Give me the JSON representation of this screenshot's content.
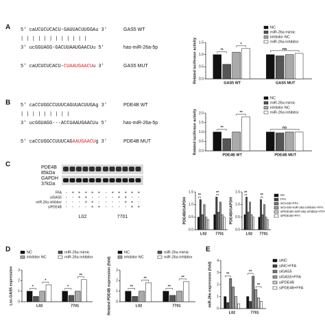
{
  "panel_labels": [
    "A",
    "B",
    "C",
    "D",
    "E"
  ],
  "sequences": [
    [
      {
        "parts": [
          {
            "text": "5' caUCUCUCACU-GAUUACUUGGAu 3'"
          }
        ],
        "label": "GAS5 WT"
      },
      {
        "parts": [
          {
            "text": "    | | | | |  | | | | | | |"
          }
        ]
      },
      {
        "parts": [
          {
            "text": "3' ucGGUAGG-GACUUAAUGAACUu 5'"
          }
        ],
        "label": "has-miR-26a-5p"
      },
      {
        "parts": [
          {
            "text": "5' caUCUCUCACU-"
          },
          {
            "text": "CUAAUGAACU",
            "color": "#e02020"
          },
          {
            "text": "u 3'"
          }
        ],
        "label": "GAS5 MUT"
      }
    ],
    [
      {
        "parts": [
          {
            "text": "5' caCCUGGCCUUUCAGUUACUUGAg 3'"
          }
        ],
        "label": "PDE4B WT"
      },
      {
        "parts": [
          {
            "text": "      | |        | | | | | | |"
          }
        ]
      },
      {
        "parts": [
          {
            "text": "3' ucGGUAGG---ACCUAAUGAACUu 5'"
          }
        ],
        "label": "has-miR-26a-5p"
      },
      {
        "parts": [
          {
            "text": "5' caCCUGGCCUUUCAG"
          },
          {
            "text": "AAUGAACU",
            "color": "#e02020"
          },
          {
            "text": "g 3'"
          }
        ],
        "label": "PDE4B MUT"
      }
    ]
  ],
  "blot": {
    "rows": [
      {
        "name": "PDE4B",
        "size": "85kDa"
      },
      {
        "name": "GAPDH",
        "size": "37kDa"
      }
    ],
    "conditions": [
      {
        "label": "FFA",
        "signs": [
          "-",
          "+",
          "+",
          "+",
          "+",
          "+",
          "-",
          "+",
          "+",
          "+",
          "+",
          "+"
        ]
      },
      {
        "label": "siGAS5",
        "signs": [
          "-",
          "-",
          "+",
          "+",
          "-",
          "-",
          "-",
          "-",
          "+",
          "+",
          "-",
          "-"
        ]
      },
      {
        "label": "miR-26a inhibitor",
        "signs": [
          "-",
          "-",
          "-",
          "+",
          "+",
          "-",
          "-",
          "-",
          "-",
          "+",
          "+",
          "-"
        ]
      },
      {
        "label": "siPDE4B",
        "signs": [
          "-",
          "-",
          "-",
          "-",
          "+",
          "+",
          "-",
          "-",
          "-",
          "-",
          "+",
          "+"
        ]
      }
    ],
    "cells": [
      "L02",
      "7701"
    ]
  },
  "chart_data": [
    {
      "type": "bar",
      "ylabel": "Related luciferase activity",
      "categories": [
        "GAS5 WT",
        "GAS5 MUT"
      ],
      "series": [
        {
          "name": "NC",
          "color": "#111111",
          "values": [
            1.0,
            1.0
          ]
        },
        {
          "name": "miR-26a mimic",
          "color": "#555555",
          "values": [
            0.6,
            0.95
          ]
        },
        {
          "name": "inhibitor NC",
          "color": "#aaaaaa",
          "values": [
            1.1,
            1.0
          ]
        },
        {
          "name": "miR-26a inhibitor",
          "color": "#ffffff",
          "values": [
            1.25,
            1.05
          ]
        }
      ],
      "ylim": [
        0,
        1.5
      ],
      "yticks": [
        {
          "value": 0,
          "label": "0.0"
        },
        {
          "value": 0.5,
          "label": "0.5"
        },
        {
          "value": 1,
          "label": "1.0"
        },
        {
          "value": 1.5,
          "label": "1.5"
        }
      ],
      "legend": "top-right",
      "significance": [
        {
          "label": "**",
          "category": 0,
          "from": 0,
          "to": 1
        },
        {
          "label": "*",
          "category": 0,
          "from": 2,
          "to": 3
        },
        {
          "label": "ns",
          "category": 1,
          "from": 0,
          "to": 3
        }
      ]
    },
    {
      "type": "bar",
      "ylabel": "Related luciferase activity",
      "categories": [
        "PDE4B WT",
        "PDE4B MUT"
      ],
      "series": [
        {
          "name": "NC",
          "color": "#111111",
          "values": [
            1.0,
            1.0
          ]
        },
        {
          "name": "miR-26a mimic",
          "color": "#555555",
          "values": [
            0.65,
            0.95
          ]
        },
        {
          "name": "inhibitor NC",
          "color": "#aaaaaa",
          "values": [
            1.0,
            1.0
          ]
        },
        {
          "name": "miR-26a inhibitor",
          "color": "#ffffff",
          "values": [
            1.8,
            1.0
          ]
        }
      ],
      "ylim": [
        0,
        2
      ],
      "yticks": [
        {
          "value": 0,
          "label": "0.0"
        },
        {
          "value": 0.5,
          "label": "0.5"
        },
        {
          "value": 1,
          "label": "1.0"
        },
        {
          "value": 1.5,
          "label": "1.5"
        },
        {
          "value": 2,
          "label": "2.0"
        }
      ],
      "legend": "top-right",
      "significance": [
        {
          "label": "**",
          "category": 0,
          "from": 0,
          "to": 1
        },
        {
          "label": "**",
          "category": 0,
          "from": 2,
          "to": 3
        },
        {
          "label": "ns",
          "category": 1,
          "from": 0,
          "to": 3
        }
      ]
    },
    {
      "type": "bar",
      "ylabel": "PDE4B/GAPDH",
      "categories": [
        "L02",
        "7701"
      ],
      "series": [
        {
          "name": "NC",
          "color": "#111111",
          "values": [
            0.5,
            0.6
          ]
        },
        {
          "name": "FFA",
          "color": "#444444",
          "values": [
            1.2,
            1.3
          ]
        },
        {
          "name": "siGAS5+FFA",
          "color": "#777777",
          "values": [
            0.6,
            0.7
          ]
        },
        {
          "name": "siGAS5+miR-26a inhibitor+FFA",
          "color": "#999999",
          "values": [
            1.0,
            1.1
          ]
        },
        {
          "name": "siPDE4B+miR-26a inhibitor+FFA",
          "color": "#cccccc",
          "values": [
            0.5,
            0.6
          ]
        },
        {
          "name": "siPDE4B+FFA",
          "color": "#ffffff",
          "values": [
            0.4,
            0.5
          ]
        }
      ],
      "ylim": [
        0,
        1.5
      ],
      "yticks": [
        {
          "value": 0,
          "label": "0.0"
        },
        {
          "value": 0.5,
          "label": "0.5"
        },
        {
          "value": 1,
          "label": "1.0"
        },
        {
          "value": 1.5,
          "label": "1.5"
        }
      ],
      "significance": [
        {
          "label": "**",
          "category": 0,
          "from": 0,
          "to": 1
        },
        {
          "label": "**",
          "category": 1,
          "from": 1,
          "to": 2
        }
      ]
    },
    {
      "type": "bar",
      "ylabel": "PDE4B/GAPDH",
      "categories": [
        "L02",
        "7701"
      ],
      "series": [
        {
          "name": "NC",
          "color": "#111111",
          "values": [
            0.6,
            0.5
          ]
        },
        {
          "name": "FFA",
          "color": "#444444",
          "values": [
            1.3,
            1.2
          ]
        },
        {
          "name": "siGAS5+FFA",
          "color": "#777777",
          "values": [
            0.7,
            0.6
          ]
        },
        {
          "name": "siGAS5+miR-26a inhibitor+FFA",
          "color": "#999999",
          "values": [
            1.1,
            1.0
          ]
        },
        {
          "name": "siPDE4B+miR-26a inhibitor+FFA",
          "color": "#cccccc",
          "values": [
            0.6,
            0.5
          ]
        },
        {
          "name": "siPDE4B+FFA",
          "color": "#ffffff",
          "values": [
            0.5,
            0.4
          ]
        }
      ],
      "ylim": [
        0,
        1.5
      ],
      "yticks": [
        {
          "value": 0,
          "label": "0.0"
        },
        {
          "value": 0.5,
          "label": "0.5"
        },
        {
          "value": 1,
          "label": "1.0"
        },
        {
          "value": 1.5,
          "label": "1.5"
        }
      ],
      "legend": "right",
      "significance": [
        {
          "label": "**",
          "category": 0,
          "from": 0,
          "to": 1
        },
        {
          "label": "**",
          "category": 1,
          "from": 1,
          "to": 2
        }
      ]
    },
    {
      "type": "bar",
      "ylabel": "Lnc-GAS5 expression",
      "categories": [
        "L02",
        "7701"
      ],
      "series": [
        {
          "name": "NC",
          "color": "#111111",
          "values": [
            1.0,
            1.0
          ]
        },
        {
          "name": "miR-26a mimic",
          "color": "#555555",
          "values": [
            0.5,
            0.6
          ]
        },
        {
          "name": "inhibitor NC",
          "color": "#aaaaaa",
          "values": [
            1.0,
            1.0
          ]
        },
        {
          "name": "miR-26a inhibitor",
          "color": "#ffffff",
          "values": [
            1.6,
            2.1
          ]
        }
      ],
      "ylim": [
        0,
        3
      ],
      "yticks": [
        0,
        1,
        2,
        3
      ],
      "legend": "top",
      "significance": [
        {
          "label": "*",
          "category": 0,
          "from": 0,
          "to": 1
        },
        {
          "label": "*",
          "category": 0,
          "from": 2,
          "to": 3
        },
        {
          "label": "*",
          "category": 1,
          "from": 0,
          "to": 1
        },
        {
          "label": "**",
          "category": 1,
          "from": 2,
          "to": 3
        }
      ]
    },
    {
      "type": "bar",
      "ylabel": "Related PDE4B expression (fold)",
      "categories": [
        "L02",
        "7701"
      ],
      "series": [
        {
          "name": "NC",
          "color": "#111111",
          "values": [
            1.0,
            1.0
          ]
        },
        {
          "name": "miR-26a mimic",
          "color": "#555555",
          "values": [
            0.5,
            0.6
          ]
        },
        {
          "name": "inhibitor NC",
          "color": "#aaaaaa",
          "values": [
            1.0,
            1.0
          ]
        },
        {
          "name": "miR-26a inhibitor",
          "color": "#ffffff",
          "values": [
            1.8,
            1.9
          ]
        }
      ],
      "ylim": [
        0,
        3
      ],
      "yticks": [
        0,
        1,
        2,
        3
      ],
      "legend": "top",
      "significance": [
        {
          "label": "**",
          "category": 0,
          "from": 0,
          "to": 1
        },
        {
          "label": "**",
          "category": 0,
          "from": 2,
          "to": 3
        },
        {
          "label": "**",
          "category": 1,
          "from": 0,
          "to": 1
        },
        {
          "label": "**",
          "category": 1,
          "from": 2,
          "to": 3
        }
      ]
    },
    {
      "type": "bar",
      "ylabel": "miR-26a expression (fold)",
      "categories": [
        "L02",
        "7701"
      ],
      "series": [
        {
          "name": "siNC",
          "color": "#111111",
          "values": [
            1.0,
            1.0
          ]
        },
        {
          "name": "siNC+FFA",
          "color": "#444444",
          "values": [
            0.5,
            0.6
          ]
        },
        {
          "name": "siGAS5",
          "color": "#777777",
          "values": [
            2.5,
            2.7
          ]
        },
        {
          "name": "siGAS5+FFA",
          "color": "#999999",
          "values": [
            1.8,
            1.6
          ]
        },
        {
          "name": "siPDE4B",
          "color": "#cccccc",
          "values": [
            1.0,
            0.9
          ]
        },
        {
          "name": "siPDE4B+FFA",
          "color": "#ffffff",
          "values": [
            0.4,
            0.6
          ]
        }
      ],
      "ylim": [
        0,
        4
      ],
      "yticks": [
        0,
        1,
        2,
        3,
        4
      ],
      "legend": "right",
      "significance": [
        {
          "label": "**",
          "category": 0,
          "from": 0,
          "to": 2
        },
        {
          "label": "**",
          "category": 1,
          "from": 0,
          "to": 2
        },
        {
          "label": "**",
          "category": 1,
          "from": 3,
          "to": 5
        }
      ]
    }
  ]
}
